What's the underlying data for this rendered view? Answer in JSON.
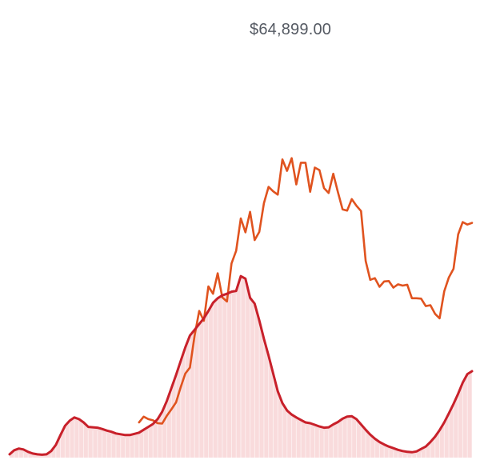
{
  "chart_data": {
    "type": "line",
    "title": "",
    "xlabel": "",
    "ylabel": "",
    "peak_label": "$64,899.00",
    "grid": false,
    "legend": "none",
    "x": [
      0,
      1,
      2,
      3,
      4,
      5,
      6,
      7,
      8,
      9,
      10,
      11,
      12,
      13,
      14,
      15,
      16,
      17,
      18,
      19,
      20,
      21,
      22,
      23,
      24,
      25,
      26,
      27,
      28,
      29,
      30,
      31,
      32,
      33,
      34,
      35,
      36,
      37,
      38,
      39,
      40,
      41,
      42,
      43,
      44,
      45,
      46,
      47,
      48,
      49,
      50,
      51,
      52,
      53,
      54,
      55,
      56,
      57,
      58,
      59,
      60,
      61,
      62,
      63,
      64,
      65,
      66,
      67,
      68,
      69,
      70,
      71,
      72,
      73,
      74,
      75,
      76,
      77,
      78,
      79,
      80,
      81,
      82,
      83,
      84,
      85,
      86,
      87,
      88,
      89,
      90,
      91,
      92,
      93,
      94,
      95,
      96,
      97,
      98,
      99,
      100
    ],
    "series": [
      {
        "color": "#e0531f",
        "values": [
          null,
          null,
          null,
          null,
          null,
          null,
          null,
          null,
          null,
          null,
          null,
          null,
          null,
          null,
          null,
          null,
          null,
          null,
          null,
          null,
          null,
          null,
          null,
          null,
          null,
          null,
          null,
          null,
          8.6,
          10.0,
          9.4,
          9.1,
          8.4,
          8.3,
          10.2,
          11.8,
          13.5,
          17.2,
          20.5,
          22.0,
          29.7,
          35.8,
          33.4,
          41.8,
          40.0,
          45.0,
          39.1,
          38.1,
          47.4,
          50.5,
          58.4,
          55.0,
          60.0,
          53.1,
          55.1,
          62.1,
          66.1,
          65.0,
          64.2,
          72.8,
          70.0,
          73.1,
          66.7,
          72.0,
          72.0,
          64.9,
          70.8,
          70.2,
          65.8,
          64.6,
          69.3,
          64.8,
          60.6,
          60.3,
          63.1,
          61.5,
          60.2,
          48.0,
          43.4,
          43.8,
          41.7,
          43.0,
          43.1,
          41.5,
          42.3,
          42.0,
          42.2,
          38.9,
          38.9,
          38.8,
          37.0,
          37.2,
          35.1,
          34.0,
          40.6,
          44.0,
          46.1,
          54.5,
          57.5,
          56.9,
          57.3
        ]
      },
      {
        "color": "#c8202a",
        "values": [
          0.8,
          1.8,
          2.2,
          2.0,
          1.4,
          1.0,
          0.8,
          0.7,
          0.8,
          1.6,
          3.1,
          5.5,
          7.8,
          9.0,
          9.8,
          9.4,
          8.6,
          7.5,
          7.4,
          7.3,
          7.0,
          6.6,
          6.3,
          5.9,
          5.7,
          5.5,
          5.5,
          5.8,
          6.1,
          6.8,
          7.5,
          8.2,
          9.4,
          11.2,
          13.8,
          17.0,
          20.2,
          23.6,
          26.9,
          29.8,
          31.2,
          32.6,
          34.0,
          35.8,
          37.8,
          38.9,
          39.6,
          40.0,
          40.5,
          40.7,
          44.3,
          43.7,
          39.0,
          37.6,
          33.5,
          29.0,
          24.9,
          20.5,
          16.2,
          13.3,
          11.5,
          10.5,
          9.8,
          9.2,
          8.6,
          8.4,
          8.0,
          7.6,
          7.3,
          7.4,
          8.1,
          8.7,
          9.5,
          10.0,
          10.1,
          9.4,
          8.1,
          6.8,
          5.6,
          4.6,
          3.8,
          3.2,
          2.7,
          2.3,
          1.9,
          1.6,
          1.4,
          1.3,
          1.5,
          2.1,
          2.7,
          3.8,
          5.1,
          6.7,
          8.6,
          10.8,
          13.1,
          15.6,
          18.3,
          20.4,
          21.1
        ]
      }
    ]
  }
}
